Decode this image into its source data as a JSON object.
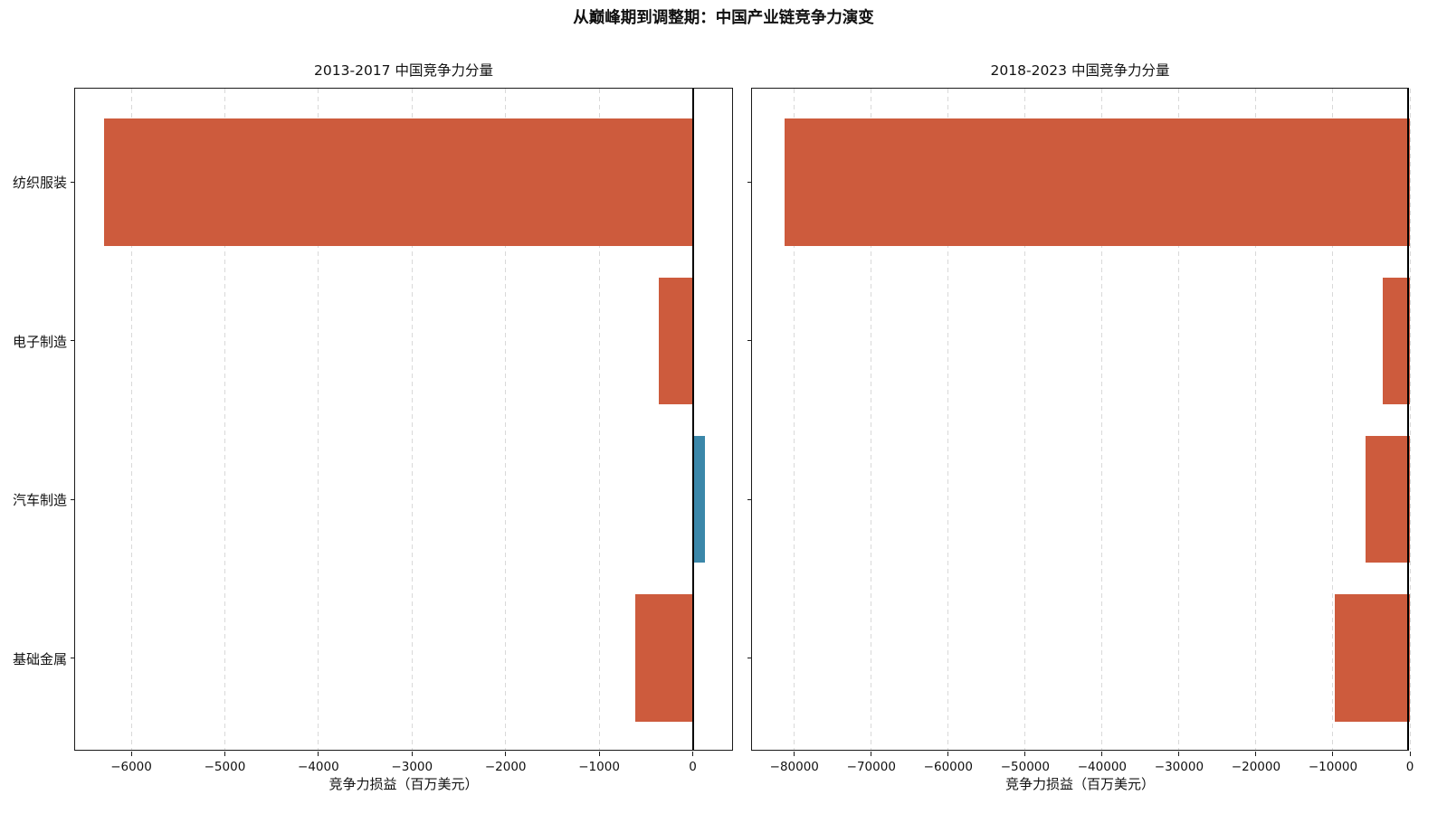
{
  "title": "从巅峰期到调整期：中国产业链竞争力演变",
  "style": {
    "grid_color": "#d9d9d9",
    "spine_color": "#1a1a1a",
    "color_negative": "#cd5b3d",
    "color_positive": "#3b87a9"
  },
  "chart_data": [
    {
      "type": "bar",
      "orientation": "horizontal",
      "title": "2013-2017  中国竞争力分量",
      "categories": [
        "纺织服装",
        "电子制造",
        "汽车制造",
        "基础金属"
      ],
      "values": [
        -6290,
        -360,
        130,
        -610
      ],
      "xlabel": "竞争力损益（百万美元）",
      "ylabel": "",
      "xlim": [
        -6600,
        440
      ],
      "xticks": [
        -6000,
        -5000,
        -4000,
        -3000,
        -2000,
        -1000,
        0
      ],
      "grid": "dashed-vertical",
      "zero_line": true,
      "show_category_labels": true,
      "legend": "none"
    },
    {
      "type": "bar",
      "orientation": "horizontal",
      "title": "2018-2023  中国竞争力分量",
      "categories": [
        "纺织服装",
        "电子制造",
        "汽车制造",
        "基础金属"
      ],
      "values": [
        -81300,
        -3500,
        -5800,
        -9800
      ],
      "xlabel": "竞争力损益（百万美元）",
      "ylabel": "",
      "xlim": [
        -85500,
        0
      ],
      "xticks": [
        -80000,
        -70000,
        -60000,
        -50000,
        -40000,
        -30000,
        -20000,
        -10000,
        0
      ],
      "grid": "dashed-vertical",
      "zero_line": true,
      "show_category_labels": false,
      "legend": "none"
    }
  ]
}
